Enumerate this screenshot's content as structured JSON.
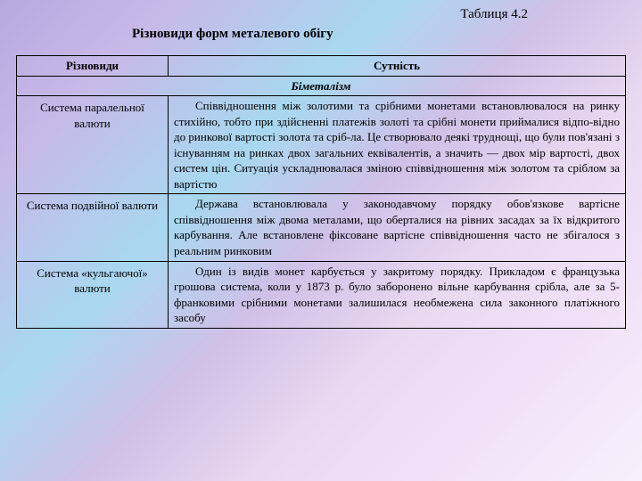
{
  "table_number": "Таблиця 4.2",
  "title": "Різновиди форм металевого обігу",
  "columns": {
    "col1": "Різновиди",
    "col2": "Сутність"
  },
  "section": "Біметалізм",
  "rows": [
    {
      "type": "Система паралельної валюти",
      "desc": "Співвідношення між золотими та срібними монетами встановлювалося на ринку стихійно, тобто при здійсненні платежів золоті та срібні монети приймалися відпо-відно до ринкової вартості золота та сріб-ла. Це створювало деякі труднощі, що були пов'язані з існуванням на ринках двох загальних еквівалентів, а значить — двох мір вартості, двох систем цін. Ситуація ускладнювалася зміною співвідношення між золотом та сріблом за вартістю"
    },
    {
      "type": "Система подвійної валюти",
      "desc": "Держава встановлювала у законодавчому порядку обов'язкове вартісне співвідношення між двома металами, що оберталися на рівних засадах за їх відкритого карбування. Але встановлене фіксоване вартісне співвідношення часто не збігалося з реальним ринковим"
    },
    {
      "type": "Система «кульгаючої» валюти",
      "desc": "Один із видів монет карбується у закритому порядку. Прикладом є французька грошова система, коли у 1873 р. було заборонено вільне карбування срібла, але за 5-франковими срібними монетами залишилася необмежена сила законного платіжного засобу"
    }
  ]
}
